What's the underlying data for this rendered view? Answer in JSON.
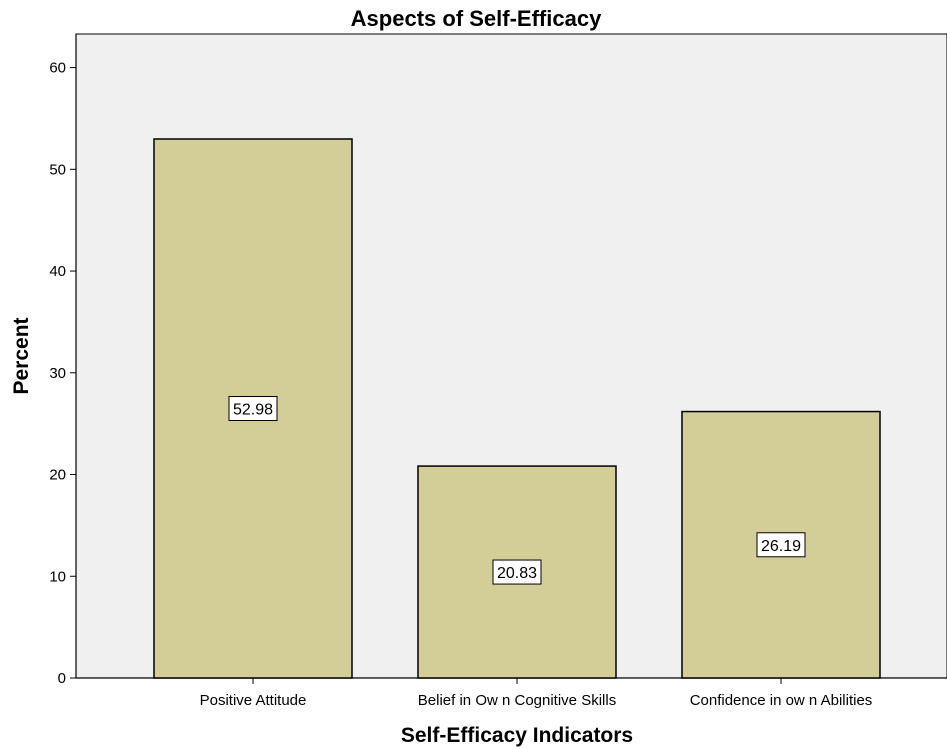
{
  "chart_data": {
    "type": "bar",
    "title": "Aspects of Self-Efficacy",
    "xlabel": "Self-Efficacy Indicators",
    "ylabel": "Percent",
    "categories": [
      "Positive Attitude",
      "Belief in Ow n Cognitive Skills",
      "Confidence in ow n Abilities"
    ],
    "values": [
      52.98,
      20.83,
      26.19
    ],
    "data_labels": [
      "52.98",
      "20.83",
      "26.19"
    ],
    "ylim": [
      0,
      63.3
    ],
    "yticks": [
      0,
      10,
      20,
      30,
      40,
      50,
      60
    ],
    "grid": false,
    "legend": "none",
    "colors": {
      "plot_background": "#f0f0f0",
      "bar_fill": "#d3ce97",
      "bar_stroke": "#000000",
      "label_box_fill": "#ffffff"
    }
  }
}
